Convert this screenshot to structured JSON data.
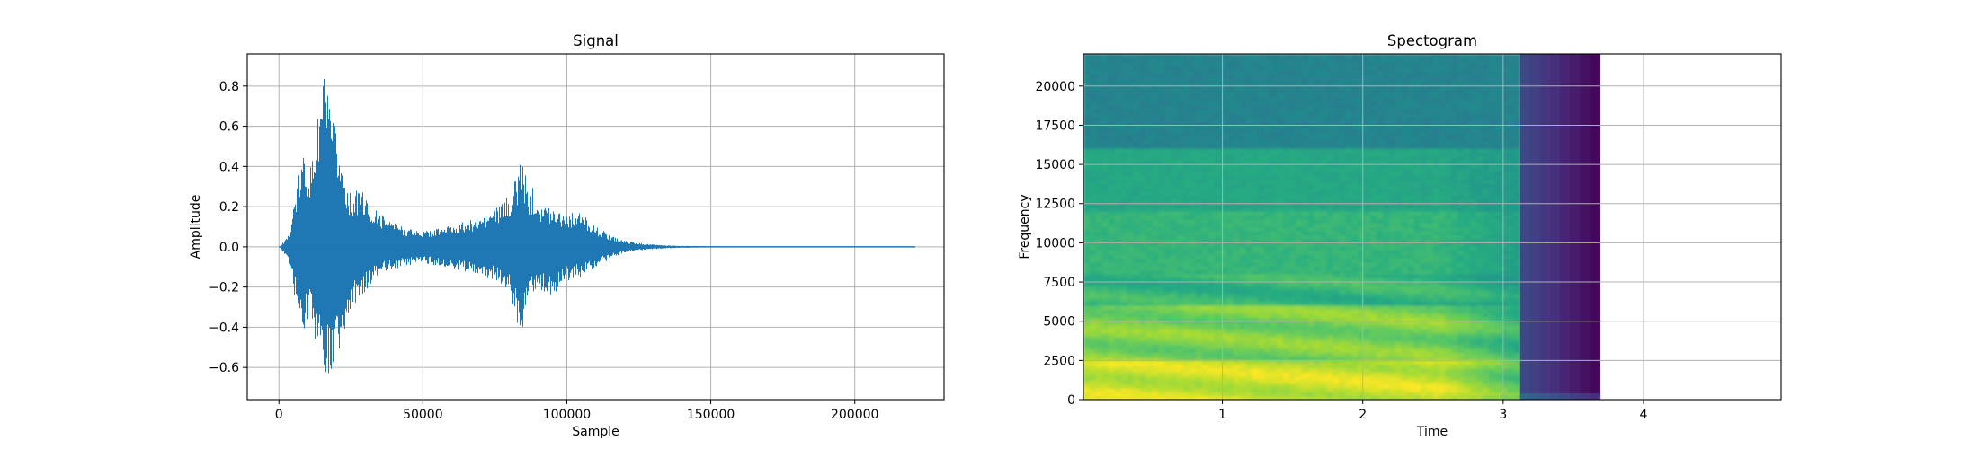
{
  "chart_data": [
    {
      "type": "line",
      "title": "Signal",
      "xlabel": "Sample",
      "ylabel": "Amplitude",
      "xlim": [
        -11000,
        231000
      ],
      "ylim": [
        -0.76,
        0.96
      ],
      "grid": true,
      "color": "#1f77b4",
      "xticks": [
        0,
        50000,
        100000,
        150000,
        200000
      ],
      "xtick_labels": [
        "0",
        "50000",
        "100000",
        "150000",
        "200000"
      ],
      "yticks": [
        -0.6,
        -0.4,
        -0.2,
        0.0,
        0.2,
        0.4,
        0.6,
        0.8
      ],
      "ytick_labels": [
        "−0.6",
        "−0.4",
        "−0.2",
        "0.0",
        "0.2",
        "0.4",
        "0.6",
        "0.8"
      ],
      "envelope": {
        "x": [
          0,
          3000,
          6000,
          8500,
          11000,
          13500,
          15500,
          17500,
          19500,
          22000,
          25000,
          28000,
          32000,
          37000,
          43000,
          50000,
          57000,
          63000,
          70000,
          76000,
          80000,
          82500,
          84000,
          85000,
          86500,
          88000,
          91000,
          95000,
          100000,
          105000,
          110000,
          115000,
          120000,
          125000,
          130000,
          137000,
          145000,
          160000,
          180000,
          200000,
          221000
        ],
        "max": [
          0.0,
          0.05,
          0.3,
          0.48,
          0.4,
          0.66,
          0.9,
          0.68,
          0.6,
          0.4,
          0.25,
          0.3,
          0.2,
          0.15,
          0.1,
          0.08,
          0.1,
          0.12,
          0.15,
          0.2,
          0.26,
          0.36,
          0.47,
          0.4,
          0.27,
          0.3,
          0.22,
          0.2,
          0.17,
          0.17,
          0.1,
          0.06,
          0.03,
          0.02,
          0.012,
          0.006,
          0.004,
          0.002,
          0.002,
          0.002,
          0.0
        ],
        "min": [
          0.0,
          -0.06,
          -0.3,
          -0.44,
          -0.36,
          -0.58,
          -0.68,
          -0.62,
          -0.58,
          -0.48,
          -0.3,
          -0.26,
          -0.18,
          -0.12,
          -0.1,
          -0.08,
          -0.1,
          -0.12,
          -0.14,
          -0.18,
          -0.24,
          -0.38,
          -0.46,
          -0.36,
          -0.24,
          -0.26,
          -0.22,
          -0.24,
          -0.17,
          -0.15,
          -0.1,
          -0.06,
          -0.03,
          -0.02,
          -0.012,
          -0.006,
          -0.004,
          -0.002,
          -0.002,
          -0.002,
          0.0
        ]
      }
    },
    {
      "type": "heatmap",
      "title": "Spectogram",
      "xlabel": "Time",
      "ylabel": "Frequency",
      "xlim": [
        0.01,
        4.98
      ],
      "ylim": [
        0,
        22050
      ],
      "grid": true,
      "colormap": "viridis",
      "xticks": [
        1,
        2,
        3,
        4
      ],
      "xtick_labels": [
        "1",
        "2",
        "3",
        "4"
      ],
      "yticks": [
        0,
        2500,
        5000,
        7500,
        10000,
        12500,
        15000,
        17500,
        20000
      ],
      "ytick_labels": [
        "0",
        "2500",
        "5000",
        "7500",
        "10000",
        "12500",
        "15000",
        "17500",
        "20000"
      ],
      "time_segments": [
        {
          "start": 0.01,
          "end": 3.12,
          "kind": "speech"
        },
        {
          "start": 3.12,
          "end": 3.69,
          "kind": "silence"
        }
      ],
      "frequency_bands": [
        {
          "f_low": 0,
          "f_high": 2500,
          "level": 0.92
        },
        {
          "f_low": 2500,
          "f_high": 6000,
          "level": 0.8
        },
        {
          "f_low": 6000,
          "f_high": 12000,
          "level": 0.66
        },
        {
          "f_low": 12000,
          "f_high": 16000,
          "level": 0.6
        },
        {
          "f_low": 16000,
          "f_high": 22050,
          "level": 0.45
        }
      ]
    }
  ]
}
